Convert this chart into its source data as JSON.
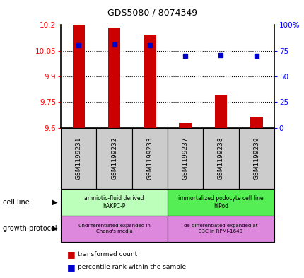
{
  "title": "GDS5080 / 8074349",
  "samples": [
    "GSM1199231",
    "GSM1199232",
    "GSM1199233",
    "GSM1199237",
    "GSM1199238",
    "GSM1199239"
  ],
  "transformed_counts": [
    10.2,
    10.185,
    10.145,
    9.63,
    9.795,
    9.665
  ],
  "percentile_ranks": [
    80,
    81,
    80,
    70,
    71,
    70
  ],
  "y_min": 9.6,
  "y_max": 10.2,
  "y_ticks": [
    9.6,
    9.75,
    9.9,
    10.05,
    10.2
  ],
  "y_tick_labels": [
    "9.6",
    "9.75",
    "9.9",
    "10.05",
    "10.2"
  ],
  "right_y_ticks": [
    0,
    25,
    50,
    75,
    100
  ],
  "right_y_tick_labels": [
    "0",
    "25",
    "50",
    "75",
    "100%"
  ],
  "bar_color": "#cc0000",
  "dot_color": "#0000cc",
  "sample_bg_color": "#cccccc",
  "cell_line_groups": [
    {
      "label": "amniotic-fluid derived\nhAKPC-P",
      "start": 0,
      "end": 2,
      "color": "#bbffbb"
    },
    {
      "label": "immortalized podocyte cell line\nhIPod",
      "start": 3,
      "end": 5,
      "color": "#55ee55"
    }
  ],
  "growth_protocol_groups": [
    {
      "label": "undifferentiated expanded in\nChang's media",
      "start": 0,
      "end": 2,
      "color": "#dd88dd"
    },
    {
      "label": "de-differentiated expanded at\n33C in RPMI-1640",
      "start": 3,
      "end": 5,
      "color": "#dd88dd"
    }
  ],
  "left_labels": [
    "cell line",
    "growth protocol"
  ],
  "legend_items": [
    {
      "color": "#cc0000",
      "label": "transformed count"
    },
    {
      "color": "#0000cc",
      "label": "percentile rank within the sample"
    }
  ]
}
